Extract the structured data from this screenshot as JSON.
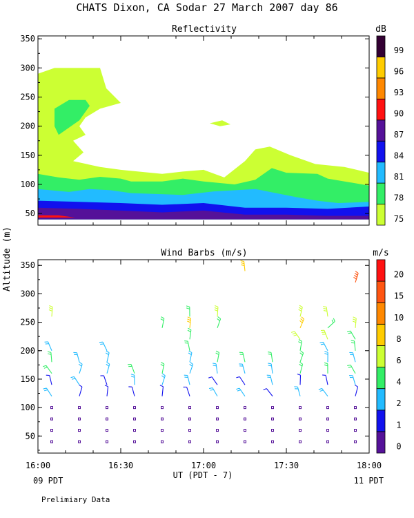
{
  "page_title": "CHATS Dixon, CA   Sodar  27 March 2007   day  86",
  "y_axis_label": "Altitude (m)",
  "x_axis_label": "UT  (PDT - 7)",
  "x_left_local": "09 PDT",
  "x_right_local": "11 PDT",
  "footnote": "Prelimiary Data",
  "chart_data": [
    {
      "type": "heatmap",
      "title": "Reflectivity",
      "colorbar_label": "dB",
      "colorbar_ticks": [
        "75",
        "78",
        "81",
        "84",
        "87",
        "90",
        "93",
        "96",
        "99"
      ],
      "colorbar_colors": [
        "#ccff33",
        "#33ee66",
        "#22bbff",
        "#1111ee",
        "#551199",
        "#ff1111",
        "#ff8800",
        "#ffcc00",
        "#330033"
      ],
      "x_ticks": [
        "16:00",
        "16:30",
        "17:00",
        "17:30",
        "18:00"
      ],
      "xlim_minutes": [
        0,
        120
      ],
      "y_ticks": [
        "50",
        "100",
        "150",
        "200",
        "250",
        "300",
        "350"
      ],
      "ylim": [
        30,
        355
      ],
      "contours": [
        {
          "level": "75",
          "points": [
            [
              0,
              290
            ],
            [
              8,
              300
            ],
            [
              30,
              300
            ],
            [
              33,
              265
            ],
            [
              40,
              240
            ],
            [
              30,
              230
            ],
            [
              23,
              215
            ],
            [
              20,
              200
            ],
            [
              23,
              185
            ],
            [
              17,
              175
            ],
            [
              22,
              155
            ],
            [
              17,
              140
            ],
            [
              30,
              130
            ],
            [
              40,
              125
            ],
            [
              60,
              118
            ],
            [
              70,
              122
            ],
            [
              80,
              125
            ],
            [
              90,
              112
            ],
            [
              100,
              140
            ],
            [
              105,
              160
            ],
            [
              112,
              165
            ],
            [
              122,
              150
            ],
            [
              134,
              135
            ],
            [
              148,
              130
            ],
            [
              160,
              120
            ],
            [
              160,
              40
            ],
            [
              0,
              40
            ]
          ]
        },
        {
          "level": "75",
          "points": [
            [
              83,
              205
            ],
            [
              89,
              210
            ],
            [
              93,
              203
            ],
            [
              88,
              200
            ]
          ]
        },
        {
          "level": "78",
          "points": [
            [
              0,
              118
            ],
            [
              10,
              112
            ],
            [
              20,
              108
            ],
            [
              30,
              113
            ],
            [
              40,
              110
            ],
            [
              45,
              105
            ],
            [
              60,
              105
            ],
            [
              70,
              110
            ],
            [
              80,
              105
            ],
            [
              95,
              100
            ],
            [
              105,
              108
            ],
            [
              113,
              128
            ],
            [
              120,
              120
            ],
            [
              135,
              118
            ],
            [
              140,
              110
            ],
            [
              160,
              98
            ],
            [
              160,
              40
            ],
            [
              0,
              40
            ]
          ]
        },
        {
          "level": "78",
          "points": [
            [
              8,
              230
            ],
            [
              15,
              245
            ],
            [
              23,
              245
            ],
            [
              25,
              235
            ],
            [
              20,
              210
            ],
            [
              10,
              185
            ],
            [
              8,
              200
            ]
          ]
        },
        {
          "level": "81",
          "points": [
            [
              0,
              92
            ],
            [
              15,
              87
            ],
            [
              25,
              92
            ],
            [
              35,
              90
            ],
            [
              45,
              85
            ],
            [
              70,
              82
            ],
            [
              85,
              88
            ],
            [
              105,
              92
            ],
            [
              115,
              85
            ],
            [
              125,
              78
            ],
            [
              135,
              72
            ],
            [
              145,
              68
            ],
            [
              160,
              70
            ],
            [
              160,
              40
            ],
            [
              0,
              40
            ]
          ]
        },
        {
          "level": "84",
          "points": [
            [
              0,
              72
            ],
            [
              20,
              70
            ],
            [
              40,
              68
            ],
            [
              60,
              65
            ],
            [
              80,
              68
            ],
            [
              100,
              60
            ],
            [
              120,
              60
            ],
            [
              140,
              58
            ],
            [
              160,
              62
            ],
            [
              160,
              40
            ],
            [
              0,
              40
            ]
          ]
        },
        {
          "level": "87",
          "points": [
            [
              0,
              60
            ],
            [
              20,
              58
            ],
            [
              40,
              55
            ],
            [
              60,
              52
            ],
            [
              80,
              55
            ],
            [
              100,
              48
            ],
            [
              120,
              48
            ],
            [
              140,
              46
            ],
            [
              160,
              46
            ],
            [
              160,
              40
            ],
            [
              0,
              40
            ]
          ]
        },
        {
          "level": "90",
          "points": [
            [
              0,
              47
            ],
            [
              10,
              47
            ],
            [
              18,
              43
            ],
            [
              0,
              43
            ]
          ]
        }
      ]
    },
    {
      "type": "scatter",
      "title": "Wind Barbs (m/s)",
      "colorbar_label": "m/s",
      "colorbar_ticks": [
        "0",
        "1",
        "2",
        "4",
        "6",
        "8",
        "10",
        "15",
        "20"
      ],
      "colorbar_colors": [
        "#551199",
        "#1111ee",
        "#22bbff",
        "#33ee66",
        "#ccff33",
        "#ffcc00",
        "#ff8800",
        "#ff5511",
        "#ff1111"
      ],
      "x_ticks": [
        "16:00",
        "16:30",
        "17:00",
        "17:30",
        "18:00"
      ],
      "xlim_minutes": [
        0,
        120
      ],
      "y_ticks": [
        "50",
        "100",
        "150",
        "200",
        "250",
        "300",
        "350"
      ],
      "ylim": [
        20,
        360
      ]
    }
  ]
}
